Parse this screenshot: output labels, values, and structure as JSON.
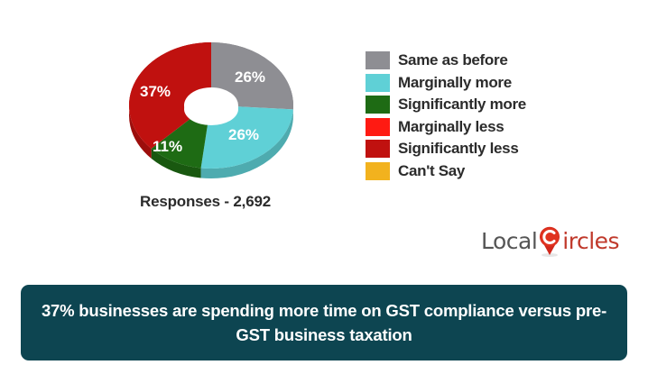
{
  "chart_data": {
    "type": "pie",
    "subtype": "donut-3d",
    "title": "37% businesses are spending more time on GST compliance versus pre-GST business taxation",
    "categories": [
      "Same as before",
      "Marginally more",
      "Significantly more",
      "Marginally less",
      "Significantly less",
      "Can't Say"
    ],
    "values": [
      26,
      26,
      11,
      0,
      37,
      0
    ],
    "unit": "%",
    "colors": [
      "#8e8e93",
      "#5fd0d6",
      "#1e6b14",
      "#ff1a12",
      "#c0110f",
      "#f2b21e"
    ],
    "data_labels": [
      "26%",
      "26%",
      "11%",
      "",
      "37%",
      ""
    ],
    "legend_position": "right",
    "total_responses": 2692
  },
  "legend": {
    "items": [
      {
        "label": "Same as before",
        "color": "#8e8e93"
      },
      {
        "label": "Marginally more",
        "color": "#5fd0d6"
      },
      {
        "label": "Significantly more",
        "color": "#1e6b14"
      },
      {
        "label": "Marginally less",
        "color": "#ff1a12"
      },
      {
        "label": "Significantly less",
        "color": "#c0110f"
      },
      {
        "label": "Can't Say",
        "color": "#f2b21e"
      }
    ]
  },
  "labels": {
    "same": "26%",
    "marginally_more": "26%",
    "significantly_more": "11%",
    "significantly_less": "37%"
  },
  "responses_label": "Responses - 2,692",
  "logo": {
    "left": "Local",
    "right": "ircles"
  },
  "banner": {
    "text": "37% businesses are spending more time on GST compliance versus pre-GST business taxation",
    "background": "#0d4551"
  }
}
